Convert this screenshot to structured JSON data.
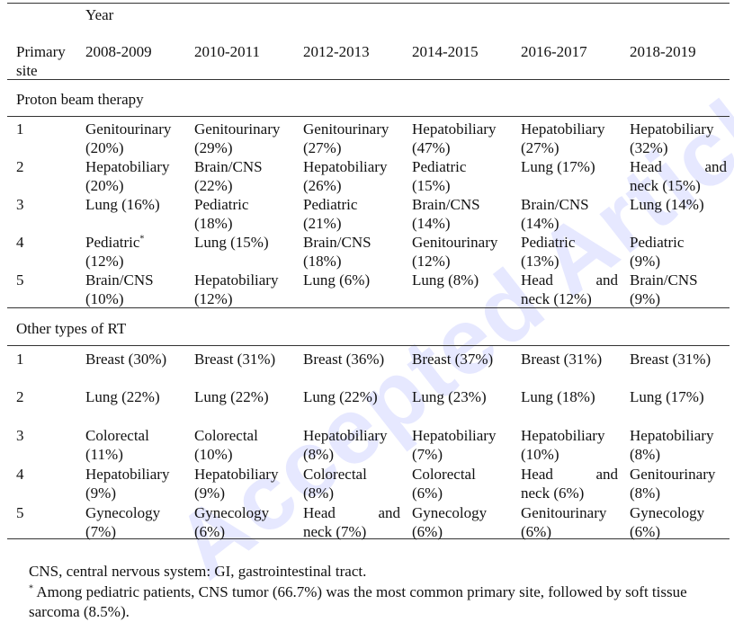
{
  "watermark": "Accepted Article",
  "header": {
    "year_label": "Year",
    "primary_site_label_line1": "Primary",
    "primary_site_label_line2": "site",
    "years": [
      "2008-2009",
      "2010-2011",
      "2012-2013",
      "2014-2015",
      "2016-2017",
      "2018-2019"
    ]
  },
  "sections": [
    {
      "title": "Proton beam therapy",
      "rows": [
        {
          "rank": "1",
          "cells": [
            [
              "Genitourinary",
              "(20%)"
            ],
            [
              "Genitourinary",
              "(29%)"
            ],
            [
              "Genitourinary",
              "(27%)"
            ],
            [
              "Hepatobiliary",
              "(47%)"
            ],
            [
              "Hepatobiliary",
              "(27%)"
            ],
            [
              "Hepatobiliary",
              "(32%)"
            ]
          ]
        },
        {
          "rank": "2",
          "cells": [
            [
              "Hepatobiliary",
              "(20%)"
            ],
            [
              "Brain/CNS",
              "(22%)"
            ],
            [
              "Hepatobiliary",
              "(26%)"
            ],
            [
              "Pediatric",
              "(15%)"
            ],
            [
              "Lung (17%)",
              ""
            ],
            [
              "Head and",
              "neck (15%)"
            ]
          ]
        },
        {
          "rank": "3",
          "cells": [
            [
              "Lung (16%)",
              ""
            ],
            [
              "Pediatric",
              "(18%)"
            ],
            [
              "Pediatric",
              "(21%)"
            ],
            [
              "Brain/CNS",
              "(14%)"
            ],
            [
              "Brain/CNS",
              "(14%)"
            ],
            [
              "Lung (14%)",
              ""
            ]
          ]
        },
        {
          "rank": "4",
          "cells": [
            [
              "Pediatric",
              "(12%)"
            ],
            [
              "Lung (15%)",
              ""
            ],
            [
              "Brain/CNS",
              "(18%)"
            ],
            [
              "Genitourinary",
              "(12%)"
            ],
            [
              "Pediatric",
              "(13%)"
            ],
            [
              "Pediatric",
              "(9%)"
            ]
          ]
        },
        {
          "rank": "5",
          "cells": [
            [
              "Brain/CNS",
              "(10%)"
            ],
            [
              "Hepatobiliary",
              "(12%)"
            ],
            [
              "Lung (6%)",
              ""
            ],
            [
              "Lung (8%)",
              ""
            ],
            [
              "Head and",
              "neck (12%)"
            ],
            [
              "Brain/CNS",
              "(9%)"
            ]
          ]
        }
      ]
    },
    {
      "title": "Other types of RT",
      "rows": [
        {
          "rank": "1",
          "cells": [
            [
              "Breast (30%)",
              ""
            ],
            [
              "Breast (31%)",
              ""
            ],
            [
              "Breast (36%)",
              ""
            ],
            [
              "Breast (37%)",
              ""
            ],
            [
              "Breast (31%)",
              ""
            ],
            [
              "Breast (31%)",
              ""
            ]
          ]
        },
        {
          "rank": "2",
          "cells": [
            [
              "Lung (22%)",
              ""
            ],
            [
              "Lung (22%)",
              ""
            ],
            [
              "Lung (22%)",
              ""
            ],
            [
              "Lung (23%)",
              ""
            ],
            [
              "Lung (18%)",
              ""
            ],
            [
              "Lung (17%)",
              ""
            ]
          ]
        },
        {
          "rank": "3",
          "cells": [
            [
              "Colorectal",
              "(11%)"
            ],
            [
              "Colorectal",
              "(10%)"
            ],
            [
              "Hepatobiliary",
              "(8%)"
            ],
            [
              "Hepatobiliary",
              "(7%)"
            ],
            [
              "Hepatobiliary",
              "(10%)"
            ],
            [
              "Hepatobiliary",
              "(8%)"
            ]
          ]
        },
        {
          "rank": "4",
          "cells": [
            [
              "Hepatobiliary",
              "(9%)"
            ],
            [
              "Hepatobiliary",
              "(9%)"
            ],
            [
              "Colorectal",
              "(8%)"
            ],
            [
              "Colorectal",
              "(6%)"
            ],
            [
              "Head and",
              "neck (6%)"
            ],
            [
              "Genitourinary",
              "(8%)"
            ]
          ]
        },
        {
          "rank": "5",
          "cells": [
            [
              "Gynecology",
              "(7%)"
            ],
            [
              "Gynecology",
              "(6%)"
            ],
            [
              "Head and",
              "neck (7%)"
            ],
            [
              "Gynecology",
              "(6%)"
            ],
            [
              "Genitourinary",
              "(6%)"
            ],
            [
              "Gynecology",
              "(6%)"
            ]
          ]
        }
      ]
    }
  ],
  "footnote_marker": "*",
  "footnotes": {
    "abbreviations": "CNS, central nervous system: GI, gastrointestinal tract.",
    "pediatric": "Among pediatric patients, CNS tumor (66.7%) was the most common primary site, followed by soft tissue sarcoma (8.5%)."
  }
}
